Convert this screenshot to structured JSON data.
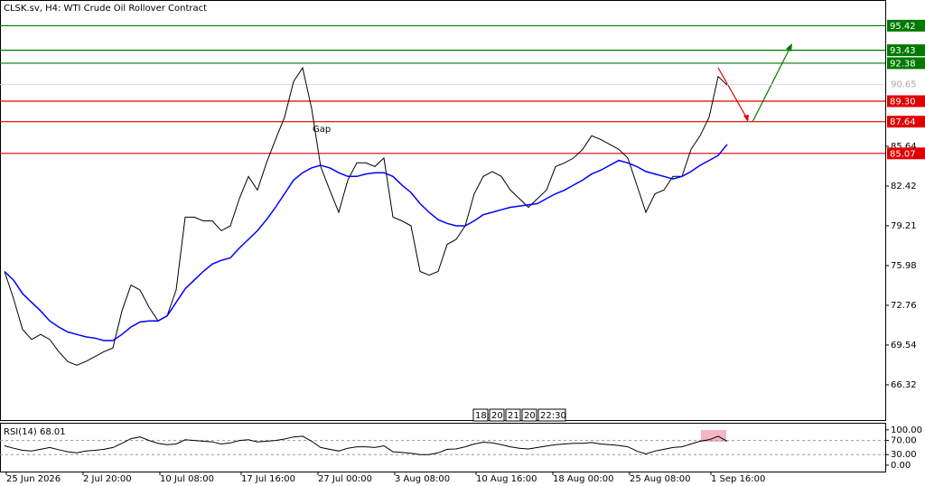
{
  "chart_data": [
    {
      "type": "line",
      "title": "CLSK.sv, H4:  WTI Crude Oil Rollover Contract",
      "annotations": [
        "Gap"
      ],
      "time_markers": [
        "18:",
        "20",
        "21",
        "20",
        "22:30"
      ],
      "xlim": [
        -0.5,
        97.5
      ],
      "xticks": [
        {
          "value": 0,
          "label": "25 Jun 2026"
        },
        {
          "value": 8.5,
          "label": "2 Jul 20:00"
        },
        {
          "value": 17,
          "label": "10 Jul 08:00"
        },
        {
          "value": 26,
          "label": "17 Jul 16:00"
        },
        {
          "value": 34.5,
          "label": "27 Jul 00:00"
        },
        {
          "value": 43,
          "label": "3 Aug 08:00"
        },
        {
          "value": 52,
          "label": "10 Aug 16:00"
        },
        {
          "value": 60.5,
          "label": "18 Aug 00:00"
        },
        {
          "value": 69,
          "label": "25 Aug 08:00"
        },
        {
          "value": 78,
          "label": "1 Sep 16:00"
        }
      ],
      "ylim": [
        63.46,
        97.5
      ],
      "yticks": [
        66.32,
        69.54,
        72.76,
        75.98,
        79.21,
        82.42,
        85.64
      ],
      "levels": [
        {
          "value": 95.42,
          "color": "#007a00"
        },
        {
          "value": 93.43,
          "color": "#007a00"
        },
        {
          "value": 92.38,
          "color": "#007a00"
        },
        {
          "value": 89.3,
          "label": "89.30",
          "color": "#e00000"
        },
        {
          "value": 87.64,
          "color": "#e00000"
        },
        {
          "value": 85.07,
          "color": "#e00000"
        }
      ],
      "current_price": 90.65,
      "series": [
        {
          "color": "#000000",
          "values": [
            75.5,
            73.3,
            70.8,
            70.0,
            70.4,
            70.0,
            69.0,
            68.2,
            67.9,
            68.2,
            68.6,
            69.0,
            69.3,
            72.3,
            74.4,
            74.0,
            72.6,
            71.5,
            71.9,
            74.0,
            79.9,
            79.9,
            79.6,
            79.6,
            78.8,
            79.2,
            81.4,
            83.2,
            82.1,
            84.3,
            86.2,
            88.0,
            90.9,
            92.0,
            88.7,
            84.0,
            82.1,
            80.3,
            82.9,
            84.3,
            84.3,
            84.0,
            84.7,
            79.9,
            79.6,
            79.2,
            75.5,
            75.2,
            75.5,
            77.7,
            78.1,
            79.2,
            81.8,
            83.2,
            83.6,
            83.2,
            82.1,
            81.4,
            80.7,
            81.4,
            82.1,
            84.0,
            84.3,
            84.7,
            85.4,
            86.5,
            86.2,
            85.8,
            85.4,
            84.7,
            82.5,
            80.3,
            81.8,
            82.1,
            83.2,
            83.2,
            85.4,
            86.5,
            88.0,
            91.3,
            90.6
          ]
        },
        {
          "color": "#0000ff",
          "values": [
            75.5,
            74.8,
            73.7,
            73.0,
            72.3,
            71.5,
            71.0,
            70.6,
            70.4,
            70.2,
            70.1,
            69.9,
            69.9,
            70.4,
            71.0,
            71.4,
            71.5,
            71.5,
            71.9,
            73.0,
            74.1,
            74.8,
            75.5,
            76.1,
            76.4,
            76.6,
            77.4,
            78.1,
            78.8,
            79.7,
            80.7,
            81.8,
            82.9,
            83.5,
            83.9,
            84.1,
            83.9,
            83.5,
            83.2,
            83.2,
            83.4,
            83.5,
            83.5,
            83.2,
            82.5,
            81.9,
            81.0,
            80.3,
            79.7,
            79.4,
            79.2,
            79.2,
            79.6,
            80.1,
            80.3,
            80.5,
            80.7,
            80.8,
            80.9,
            81.0,
            81.4,
            81.8,
            82.1,
            82.5,
            82.9,
            83.4,
            83.7,
            84.1,
            84.5,
            84.3,
            84.0,
            83.6,
            83.4,
            83.2,
            83.0,
            83.2,
            83.6,
            84.1,
            84.5,
            84.9,
            85.8
          ]
        }
      ]
    },
    {
      "type": "line",
      "title": "RSI(14) 68.01",
      "ylim": [
        -18,
        115
      ],
      "yticks": [
        {
          "value": 100,
          "label": "100.00"
        },
        {
          "value": 70,
          "label": "70.00"
        },
        {
          "value": 30,
          "label": "30.00"
        },
        {
          "value": 0,
          "label": "0.00"
        }
      ],
      "levels": [
        70,
        30
      ],
      "series": [
        {
          "color": "#000000",
          "values": [
            55,
            48,
            42,
            40,
            45,
            50,
            44,
            38,
            35,
            40,
            42,
            45,
            50,
            62,
            75,
            80,
            70,
            62,
            58,
            60,
            72,
            70,
            68,
            66,
            60,
            63,
            70,
            72,
            66,
            68,
            70,
            74,
            80,
            82,
            68,
            50,
            45,
            40,
            48,
            52,
            52,
            50,
            55,
            38,
            36,
            34,
            30,
            30,
            35,
            45,
            46,
            52,
            60,
            65,
            63,
            58,
            52,
            48,
            46,
            50,
            54,
            58,
            60,
            62,
            62,
            64,
            60,
            58,
            56,
            52,
            40,
            32,
            40,
            45,
            50,
            52,
            60,
            68,
            72,
            82,
            68.01
          ]
        }
      ]
    }
  ]
}
